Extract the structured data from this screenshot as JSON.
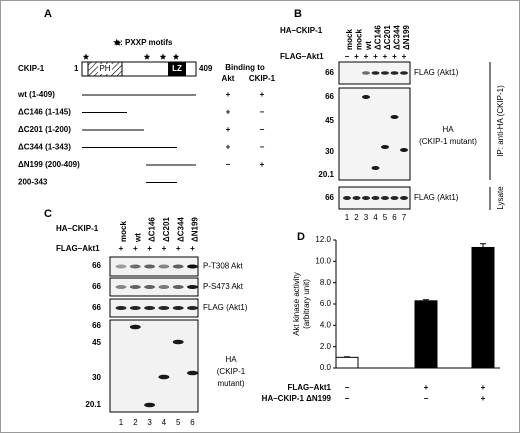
{
  "panel_a": {
    "label": "A",
    "legend": "★: PXXP motifs",
    "protein": "CKIP-1",
    "start": "1",
    "end": "409",
    "domains": [
      "PH",
      "LZ"
    ],
    "binding_header": "Binding to",
    "binding_columns": [
      "Akt",
      "CKIP-1"
    ],
    "constructs": [
      {
        "name": "wt (1-409)",
        "akt": "+",
        "ckip": "+"
      },
      {
        "name": "ΔC146 (1-145)",
        "akt": "+",
        "ckip": "−"
      },
      {
        "name": "ΔC201 (1-200)",
        "akt": "+",
        "ckip": "−"
      },
      {
        "name": "ΔC344 (1-343)",
        "akt": "+",
        "ckip": "−"
      },
      {
        "name": "ΔN199 (200-409)",
        "akt": "−",
        "ckip": "+"
      },
      {
        "name": "200-343"
      }
    ]
  },
  "panel_b": {
    "label": "B",
    "row_labels": [
      "HA–CKIP-1",
      "FLAG–Akt1"
    ],
    "lanes": [
      "mock",
      "mock",
      "wt",
      "ΔC146",
      "ΔC201",
      "ΔC344",
      "ΔN199"
    ],
    "flag_signs": [
      "−",
      "+",
      "+",
      "+",
      "+",
      "+",
      "+"
    ],
    "blots": [
      {
        "markers": [
          66
        ],
        "label": [
          "FLAG (Akt1)"
        ]
      },
      {
        "markers": [
          66,
          45,
          30,
          20.1
        ],
        "label": [
          "HA",
          "(CKIP-1 mutant)"
        ]
      },
      {
        "markers": [
          66
        ],
        "label": [
          "FLAG (Akt1)"
        ]
      }
    ],
    "side_labels": [
      "IP: anti-HA (CKIP-1)",
      "Lysate"
    ],
    "lane_numbers": [
      1,
      2,
      3,
      4,
      5,
      6,
      7
    ]
  },
  "panel_c": {
    "label": "C",
    "row_labels": [
      "HA–CKIP-1",
      "FLAG–Akt1"
    ],
    "lanes": [
      "mock",
      "wt",
      "ΔC146",
      "ΔC201",
      "ΔC344",
      "ΔN199"
    ],
    "flag_signs": [
      "+",
      "+",
      "+",
      "+",
      "+",
      "+"
    ],
    "blots": [
      {
        "markers": [
          66
        ],
        "label": [
          "P-T308 Akt"
        ]
      },
      {
        "markers": [
          66
        ],
        "label": [
          "P-S473 Akt"
        ]
      },
      {
        "markers": [
          66
        ],
        "label": [
          "FLAG (Akt1)"
        ]
      },
      {
        "markers": [
          66,
          45,
          30,
          20.1
        ],
        "label": [
          "HA",
          "(CKIP-1",
          "mutant)"
        ]
      }
    ],
    "lane_numbers": [
      1,
      2,
      3,
      4,
      5,
      6
    ]
  },
  "chart_data": {
    "type": "bar",
    "label": "D",
    "y_label": [
      "Akt kinase activity",
      "(arbitrary unit)"
    ],
    "values": [
      1.0,
      6.3,
      11.3
    ],
    "errors": [
      0.05,
      0.1,
      0.35
    ],
    "colors": [
      "#ffffff",
      "#000000",
      "#000000"
    ],
    "ylim": [
      0,
      12
    ],
    "yticks": [
      {
        "value": 0,
        "label": "0.0"
      },
      {
        "value": 2,
        "label": "2.0"
      },
      {
        "value": 4,
        "label": "4.0"
      },
      {
        "value": 6,
        "label": "6.0"
      },
      {
        "value": 8,
        "label": "8.0"
      },
      {
        "value": 10,
        "label": "10.0"
      },
      {
        "value": 12,
        "label": "12.0"
      }
    ],
    "conditions": [
      {
        "name": "FLAG–Akt1",
        "signs": [
          "−",
          "+",
          "+"
        ]
      },
      {
        "name": "HA–CKIP-1 ΔN199",
        "signs": [
          "−",
          "−",
          "+"
        ]
      }
    ]
  }
}
